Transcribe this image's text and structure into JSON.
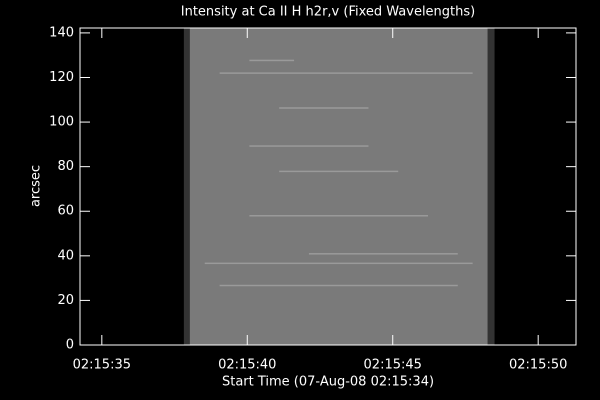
{
  "chart_data": {
    "type": "image",
    "title": "Intensity at Ca II H h2r,v (Fixed Wavelengths)",
    "xlabel": "Start Time (07-Aug-08 02:15:34)",
    "ylabel": "arcsec",
    "image_x": [
      3.82,
      14.5
    ],
    "color": "#7a7a7a",
    "xlim": [
      0.25,
      17.3
    ],
    "xticks": [
      {
        "value": 1,
        "label": "02:15:35"
      },
      {
        "value": 6,
        "label": "02:15:40"
      },
      {
        "value": 11,
        "label": "02:15:45"
      },
      {
        "value": 16,
        "label": "02:15:50"
      }
    ],
    "ylim": [
      0,
      142.2
    ],
    "yticks": [
      0,
      20,
      40,
      60,
      80,
      100,
      120,
      140
    ]
  }
}
